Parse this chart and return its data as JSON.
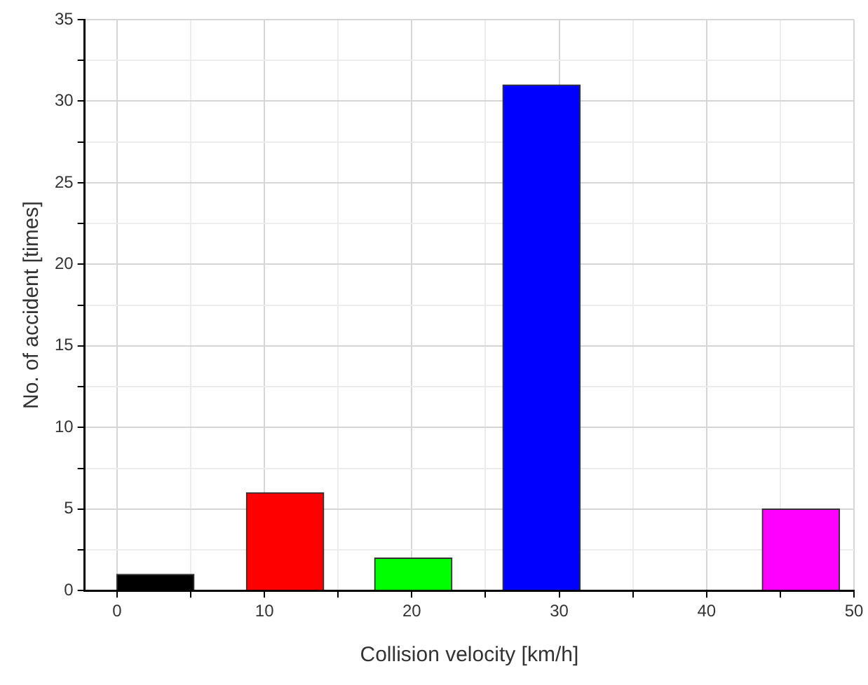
{
  "chart_data": {
    "type": "bar",
    "xlabel": "Collision velocity [km/h]",
    "ylabel": "No. of accident [times]",
    "x": [
      2.6,
      11.4,
      20.1,
      28.8,
      37.6,
      46.4
    ],
    "values": [
      1,
      6,
      2,
      31,
      0,
      5
    ],
    "colors": [
      "#000000",
      "#ff0000",
      "#00ff00",
      "#0000ff",
      "#ffffff",
      "#ff00ff"
    ],
    "xlim": [
      -2.2,
      50
    ],
    "xticks": [
      0,
      {
        "value": 5,
        "label": null
      },
      10,
      {
        "value": 15,
        "label": null
      },
      20,
      {
        "value": 25,
        "label": null
      },
      30,
      {
        "value": 35,
        "label": null
      },
      40,
      {
        "value": 45,
        "label": null
      },
      50
    ],
    "ylim": [
      0,
      35
    ],
    "yticks": [
      0,
      {
        "value": 2.5,
        "label": null
      },
      5,
      {
        "value": 7.5,
        "label": null
      },
      10,
      {
        "value": 12.5,
        "label": null
      },
      15,
      {
        "value": 17.5,
        "label": null
      },
      20,
      {
        "value": 22.5,
        "label": null
      },
      25,
      {
        "value": 27.5,
        "label": null
      },
      30,
      {
        "value": 32.5,
        "label": null
      },
      35
    ],
    "grid": true,
    "legend": false
  }
}
